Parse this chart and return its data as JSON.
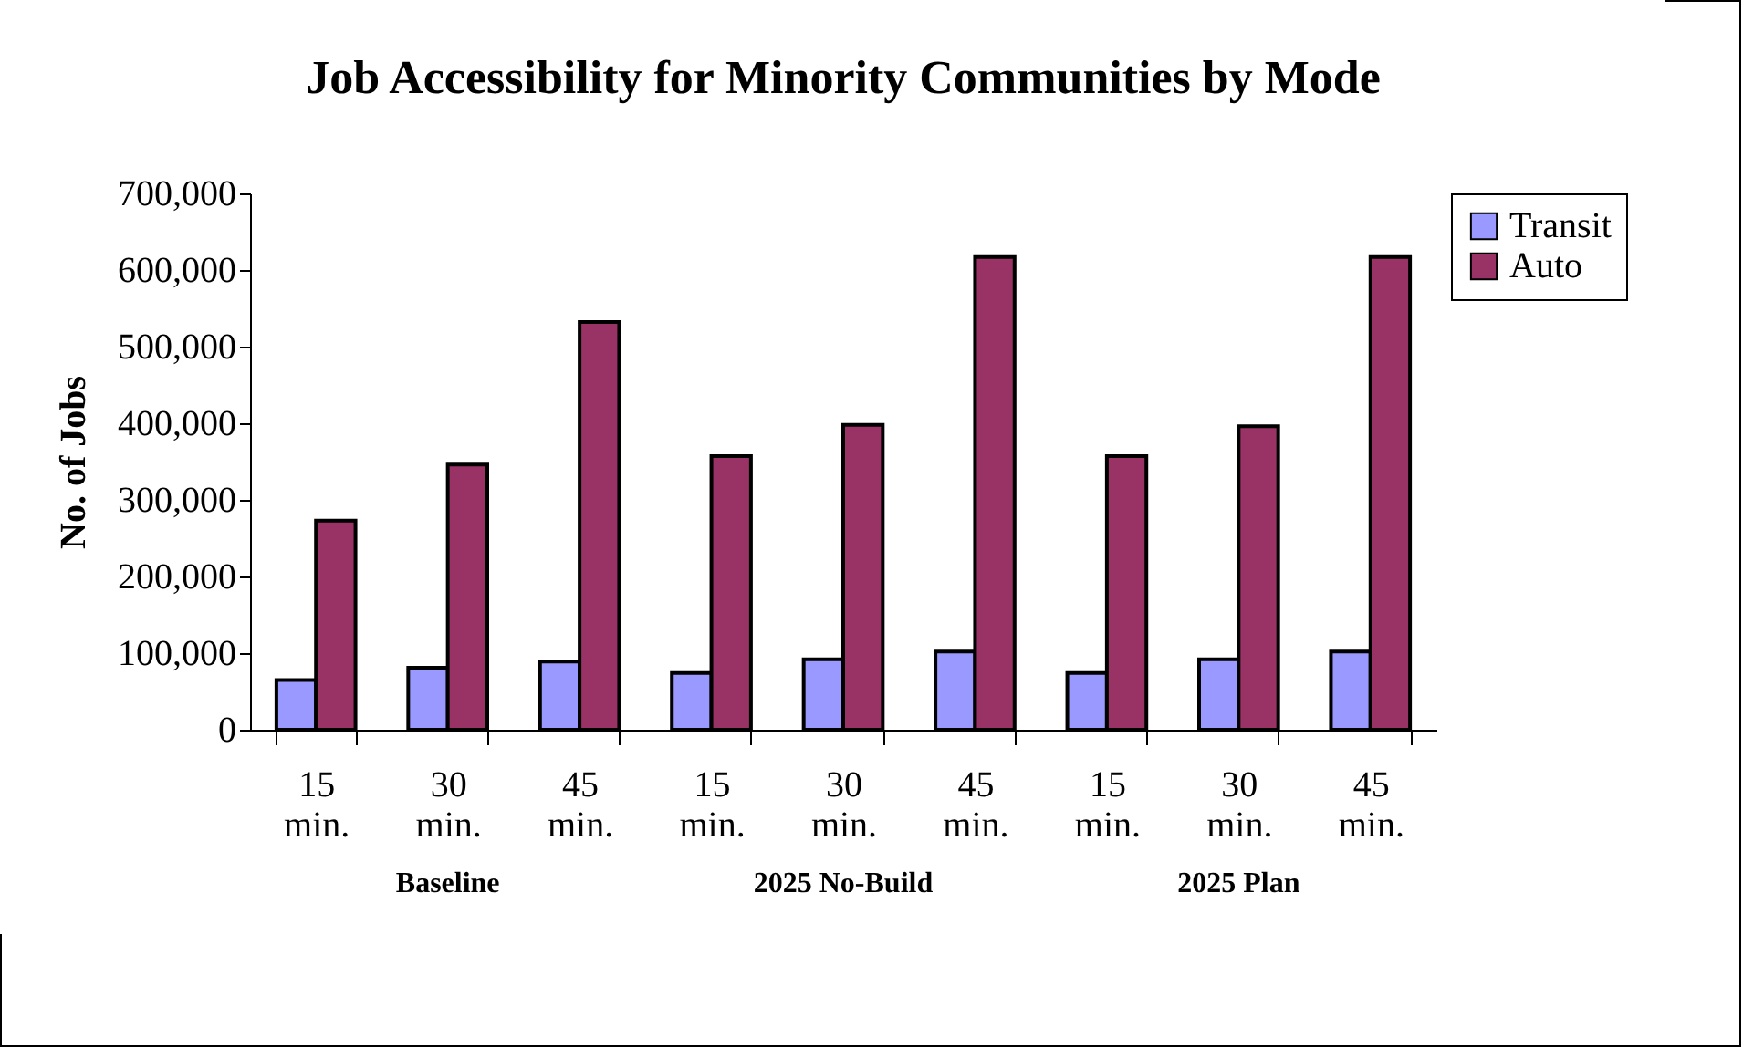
{
  "chart_data": {
    "type": "bar",
    "title": "Job Accessibility for Minority Communities by Mode",
    "ylabel": "No. of Jobs",
    "categories": [
      "15 min.",
      "30 min.",
      "45 min.",
      "15 min.",
      "30 min.",
      "45 min.",
      "15 min.",
      "30 min.",
      "45 min."
    ],
    "series": [
      {
        "name": "Transit",
        "color": "#9999ff",
        "values": [
          65000,
          81000,
          89000,
          74000,
          92000,
          102000,
          74000,
          92000,
          102000
        ]
      },
      {
        "name": "Auto",
        "color": "#993366",
        "values": [
          273000,
          346000,
          532000,
          357000,
          398000,
          617000,
          357000,
          396000,
          617000
        ]
      }
    ],
    "annotations": [
      "Baseline",
      "2025 No-Build",
      "2025 Plan"
    ],
    "ylim": [
      0,
      700000
    ],
    "yticks": [
      0,
      {
        "value": 100000,
        "label": "100,000"
      },
      {
        "value": 200000,
        "label": "200,000"
      },
      {
        "value": 300000,
        "label": "300,000"
      },
      {
        "value": 400000,
        "label": "400,000"
      },
      {
        "value": 500000,
        "label": "500,000"
      },
      {
        "value": 600000,
        "label": "600,000"
      },
      {
        "value": 700000,
        "label": "700,000"
      }
    ],
    "grid": false,
    "legend": "right"
  }
}
